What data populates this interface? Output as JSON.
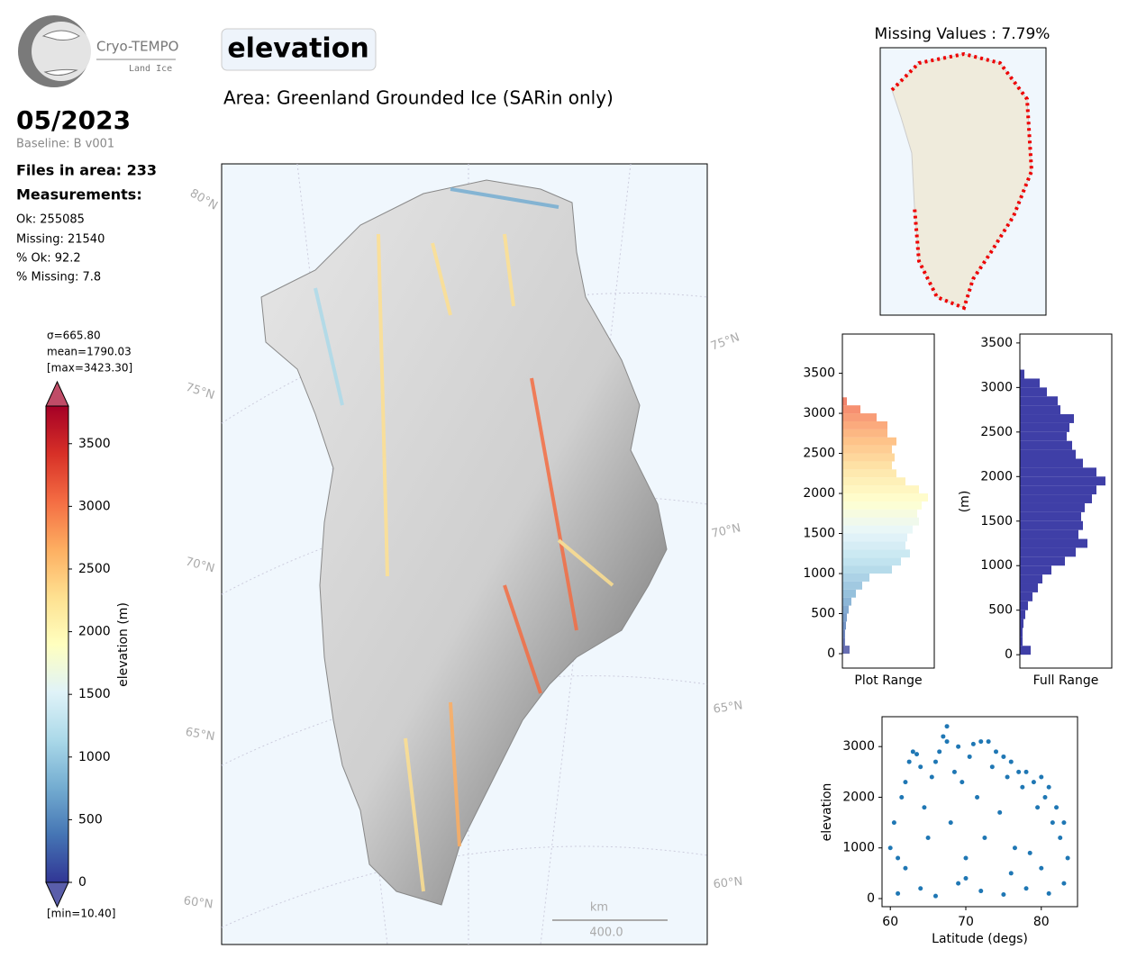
{
  "header": {
    "logo_title": "Cryo-TEMPO",
    "logo_subtitle": "Land Ice",
    "title": "elevation",
    "area": "Area: Greenland Grounded Ice (SARin only)",
    "date": "05/2023",
    "baseline": "Baseline: B v001"
  },
  "stats": {
    "files": "Files in area: 233",
    "measurements_title": "Measurements:",
    "lines": [
      "Ok: 255085",
      "Missing: 21540",
      "% Ok: 92.2",
      "% Missing: 7.8"
    ]
  },
  "chart_data": [
    {
      "type": "colorbar",
      "label": "elevation (m)",
      "ylim": [
        0,
        3800
      ],
      "yticks": [
        0,
        500,
        1000,
        1500,
        2000,
        2500,
        3000,
        3500
      ],
      "extend": "both",
      "colormap": [
        "#313695",
        "#4575b4",
        "#74add1",
        "#abd9e9",
        "#e0f3f8",
        "#ffffbf",
        "#fee090",
        "#fdae61",
        "#f46d43",
        "#d73027",
        "#a50026"
      ],
      "annotations": [
        "σ=665.80",
        "mean=1790.03",
        "[max=3423.30]",
        "[min=10.40]"
      ]
    },
    {
      "type": "map",
      "lat_labels": [
        "80°N",
        "75°N",
        "75°N",
        "70°N",
        "70°N",
        "65°N",
        "65°N",
        "60°N",
        "60°N"
      ],
      "scale_bar": {
        "unit": "km",
        "label": "400.0"
      }
    },
    {
      "type": "map",
      "title": "Missing Values : 7.79%"
    },
    {
      "type": "histogram",
      "orientation": "horizontal",
      "xlabel": "Plot Range",
      "colored_by": "colormap",
      "bins": [
        0,
        100,
        200,
        300,
        400,
        500,
        600,
        700,
        800,
        900,
        1000,
        1100,
        1200,
        1300,
        1400,
        1500,
        1600,
        1700,
        1800,
        1900,
        2000,
        2100,
        2200,
        2300,
        2400,
        2500,
        2600,
        2700,
        2800,
        2900,
        3000,
        3100,
        3200
      ],
      "counts": [
        8,
        3,
        3,
        4,
        5,
        7,
        10,
        15,
        22,
        30,
        55,
        65,
        75,
        70,
        72,
        78,
        85,
        83,
        88,
        95,
        85,
        70,
        60,
        55,
        58,
        55,
        60,
        50,
        50,
        38,
        20,
        5
      ],
      "xlim": [
        0,
        102
      ],
      "ylim": [
        -180,
        3990
      ],
      "yticks": [
        0,
        500,
        1000,
        1500,
        2000,
        2500,
        3000,
        3500
      ]
    },
    {
      "type": "histogram",
      "orientation": "horizontal",
      "xlabel": "Full Range",
      "ylabel": "(m)",
      "color": "#3f3fa7",
      "bins": [
        0,
        100,
        200,
        300,
        400,
        500,
        600,
        700,
        800,
        900,
        1000,
        1100,
        1200,
        1300,
        1400,
        1500,
        1600,
        1700,
        1800,
        1900,
        2000,
        2100,
        2200,
        2300,
        2400,
        2500,
        2600,
        2700,
        2800,
        2900,
        3000,
        3100,
        3200
      ],
      "counts": [
        12,
        3,
        3,
        4,
        6,
        9,
        14,
        20,
        25,
        35,
        50,
        62,
        75,
        65,
        70,
        68,
        72,
        80,
        85,
        95,
        85,
        70,
        62,
        58,
        52,
        55,
        60,
        45,
        42,
        30,
        22,
        5
      ],
      "xlim": [
        0,
        102
      ],
      "ylim": [
        -150,
        3600
      ],
      "yticks": [
        0,
        500,
        1000,
        1500,
        2000,
        2500,
        3000,
        3500
      ]
    },
    {
      "type": "scatter",
      "xlabel": "Latitude (degs)",
      "ylabel": "elevation",
      "color": "#1f77b4",
      "x": [
        60,
        60.5,
        61,
        61.5,
        62,
        62.5,
        63,
        63.5,
        64,
        64.5,
        65,
        65.5,
        66,
        66.5,
        67,
        67.5,
        68,
        68.5,
        69,
        69.5,
        70,
        70.5,
        71,
        71.5,
        72,
        72.5,
        73,
        73.5,
        74,
        74.5,
        75,
        75.5,
        76,
        76.5,
        77,
        77.5,
        78,
        78.5,
        79,
        79.5,
        80,
        80.5,
        81,
        81.5,
        82,
        82.5,
        83,
        83.5,
        61,
        64,
        66,
        69,
        72,
        75,
        78,
        81,
        83,
        67.5,
        62,
        70,
        76,
        80
      ],
      "y": [
        1000,
        1500,
        800,
        2000,
        2300,
        2700,
        2900,
        2850,
        2600,
        1800,
        1200,
        2400,
        2700,
        2900,
        3200,
        3100,
        1500,
        2500,
        3000,
        2300,
        800,
        2800,
        3050,
        2000,
        3100,
        1200,
        3100,
        2600,
        2900,
        1700,
        2800,
        2400,
        2700,
        1000,
        2500,
        2200,
        2500,
        900,
        2300,
        1800,
        2400,
        2000,
        2200,
        1500,
        1800,
        1200,
        1500,
        800,
        100,
        200,
        50,
        300,
        150,
        80,
        200,
        100,
        300,
        3400,
        600,
        400,
        500,
        600
      ],
      "xlim": [
        58.9,
        84.8
      ],
      "ylim": [
        -160,
        3590
      ],
      "xticks": [
        60,
        70,
        80
      ],
      "yticks": [
        0,
        1000,
        2000,
        3000
      ]
    }
  ]
}
